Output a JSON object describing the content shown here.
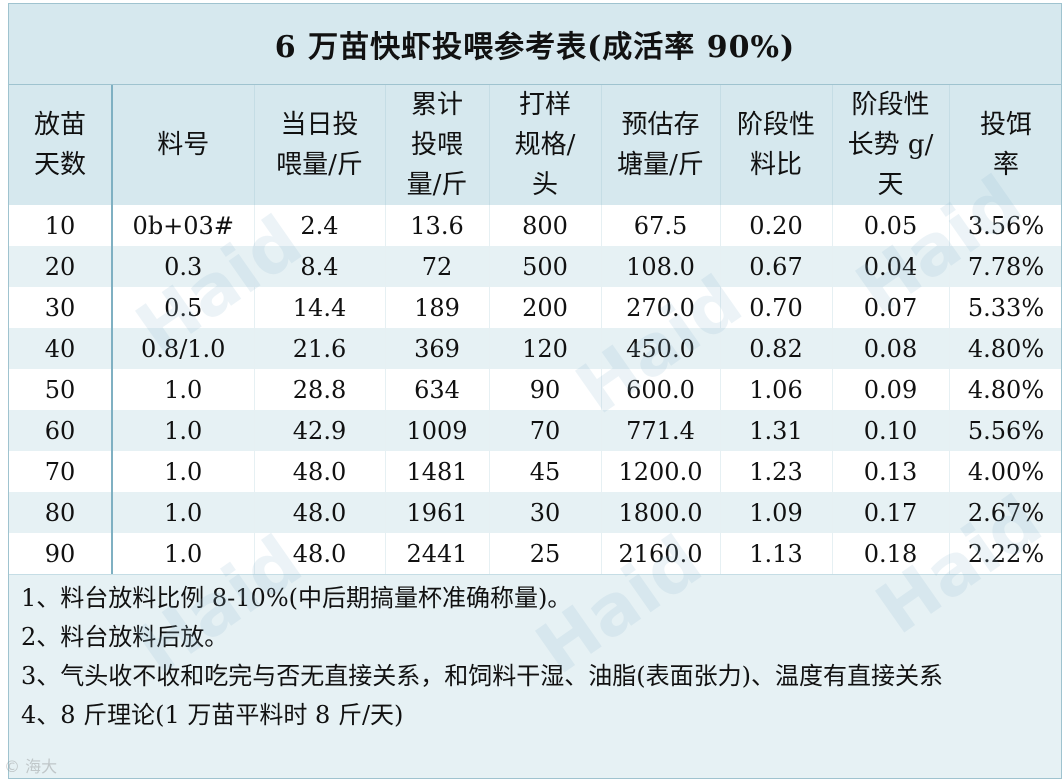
{
  "title": "6 万苗快虾投喂参考表(成活率 90%)",
  "columns": [
    "放苗\n天数",
    "料号",
    "当日投\n喂量/斤",
    "累计\n投喂\n量/斤",
    "打样\n规格/\n头",
    "预估存\n塘量/斤",
    "阶段性\n料比",
    "阶段性\n长势 g/\n天",
    "投饵\n率"
  ],
  "rows": [
    [
      "10",
      "0b+03#",
      "2.4",
      "13.6",
      "800",
      "67.5",
      "0.20",
      "0.05",
      "3.56%"
    ],
    [
      "20",
      "0.3",
      "8.4",
      "72",
      "500",
      "108.0",
      "0.67",
      "0.04",
      "7.78%"
    ],
    [
      "30",
      "0.5",
      "14.4",
      "189",
      "200",
      "270.0",
      "0.70",
      "0.07",
      "5.33%"
    ],
    [
      "40",
      "0.8/1.0",
      "21.6",
      "369",
      "120",
      "450.0",
      "0.82",
      "0.08",
      "4.80%"
    ],
    [
      "50",
      "1.0",
      "28.8",
      "634",
      "90",
      "600.0",
      "1.06",
      "0.09",
      "4.80%"
    ],
    [
      "60",
      "1.0",
      "42.9",
      "1009",
      "70",
      "771.4",
      "1.31",
      "0.10",
      "5.56%"
    ],
    [
      "70",
      "1.0",
      "48.0",
      "1481",
      "45",
      "1200.0",
      "1.23",
      "0.13",
      "4.00%"
    ],
    [
      "80",
      "1.0",
      "48.0",
      "1961",
      "30",
      "1800.0",
      "1.09",
      "0.17",
      "2.67%"
    ],
    [
      "90",
      "1.0",
      "48.0",
      "2441",
      "25",
      "2160.0",
      "1.13",
      "0.18",
      "2.22%"
    ]
  ],
  "notes": [
    "1、料台放料比例 8-10%(中后期搞量杯准确称量)。",
    "2、料台放料后放。",
    "3、气头收不收和吃完与否无直接关系，和饲料干湿、油脂(表面张力)、温度有直接关系",
    "4、8 斤理论(1 万苗平料时 8 斤/天)"
  ],
  "watermark": "Haid",
  "corner_mark": "© 海大"
}
